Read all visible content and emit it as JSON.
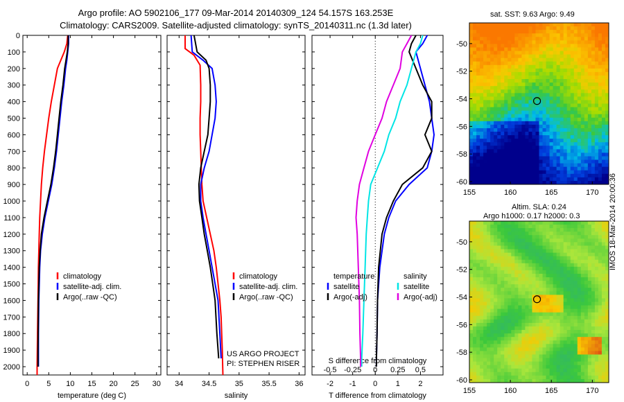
{
  "header": {
    "line1": "Argo profile: AO 5902106_177 09-Mar-2014 20140309_124 54.157S 163.253E",
    "line2": "Climatology: CARS2009. Satellite-adjusted climatology: synTS_20140311.nc (1.3d later)"
  },
  "side": {
    "sst_title": "sat. SST: 9.63 Argo: 9.49",
    "sla_title1": "Altim. SLA: 0.24",
    "sla_title2": "Argo h1000: 0.17 h2000: 0.3",
    "credit": "IMOS 18-Mar-2014 20:00:36"
  },
  "colors": {
    "climatology": "#ff0000",
    "satellite": "#0000ff",
    "argo": "#000000",
    "diff_satellite": "#00e5e5",
    "diff_argo": "#e000e0"
  },
  "chart_data": [
    {
      "type": "line",
      "panel": "temperature",
      "xlabel": "temperature (deg C)",
      "ylabel": "",
      "xlim": [
        -1,
        31
      ],
      "ylim": [
        2050,
        0
      ],
      "xticks": [
        0,
        5,
        10,
        15,
        20,
        25,
        30
      ],
      "yticks": [
        0,
        100,
        200,
        300,
        400,
        500,
        600,
        700,
        800,
        900,
        1000,
        1100,
        1200,
        1300,
        1400,
        1500,
        1600,
        1700,
        1800,
        1900,
        2000
      ],
      "legend": [
        "climatology",
        "satellite-adj. clim.",
        "Argo(..raw -QC)"
      ],
      "series": [
        {
          "name": "climatology",
          "color": "#ff0000",
          "x": [
            9.4,
            9.2,
            8.6,
            7.8,
            7.0,
            6.3,
            5.6,
            5.0,
            4.5,
            4.0,
            3.6,
            3.3,
            3.1,
            2.9,
            2.8,
            2.7,
            2.6,
            2.5,
            2.4,
            2.35,
            2.3,
            2.3
          ],
          "y": [
            0,
            50,
            100,
            150,
            200,
            300,
            400,
            500,
            600,
            700,
            800,
            900,
            1000,
            1100,
            1200,
            1300,
            1400,
            1600,
            1800,
            1900,
            2000,
            2050
          ]
        },
        {
          "name": "satellite-adj. clim.",
          "color": "#0000ff",
          "x": [
            9.6,
            9.6,
            9.4,
            9.2,
            8.9,
            8.5,
            8.0,
            7.6,
            7.2,
            6.8,
            6.3,
            5.7,
            4.9,
            4.1,
            3.5,
            3.1,
            2.9,
            2.7,
            2.6,
            2.6,
            2.6
          ],
          "y": [
            0,
            50,
            100,
            150,
            200,
            300,
            400,
            500,
            600,
            700,
            800,
            900,
            1000,
            1100,
            1200,
            1300,
            1400,
            1600,
            1800,
            1900,
            2000
          ]
        },
        {
          "name": "Argo(..raw -QC)",
          "color": "#000000",
          "x": [
            9.5,
            9.5,
            9.3,
            9.0,
            8.7,
            8.3,
            7.8,
            7.4,
            7.0,
            6.6,
            6.1,
            5.5,
            4.7,
            3.9,
            3.3,
            3.0,
            2.8,
            2.6,
            2.55,
            2.5,
            2.5
          ],
          "y": [
            0,
            50,
            100,
            150,
            200,
            300,
            400,
            500,
            600,
            700,
            800,
            900,
            1000,
            1100,
            1200,
            1300,
            1400,
            1600,
            1800,
            1900,
            2000
          ]
        }
      ]
    },
    {
      "type": "line",
      "panel": "salinity",
      "xlabel": "salinity",
      "ylabel": "",
      "xlim": [
        33.8,
        36.1
      ],
      "ylim": [
        2050,
        0
      ],
      "xticks": [
        34,
        34.5,
        35,
        35.5,
        36
      ],
      "xticklabels": [
        "34",
        "34.5",
        "35",
        "35.5",
        "36"
      ],
      "legend": [
        "climatology",
        "satellite-adj. clim.",
        "Argo(..raw -QC)"
      ],
      "annotation": [
        "US ARGO PROJECT",
        "PI: STEPHEN RISER"
      ],
      "series": [
        {
          "name": "climatology",
          "color": "#ff0000",
          "x": [
            34.1,
            34.1,
            34.25,
            34.35,
            34.36,
            34.36,
            34.35,
            34.35,
            34.36,
            34.37,
            34.38,
            34.4,
            34.46,
            34.52,
            34.58,
            34.62,
            34.65,
            34.68,
            34.7,
            34.72,
            34.73
          ],
          "y": [
            0,
            80,
            120,
            180,
            300,
            400,
            500,
            600,
            700,
            800,
            900,
            1000,
            1100,
            1200,
            1300,
            1400,
            1500,
            1600,
            1700,
            1900,
            2050
          ]
        },
        {
          "name": "satellite-adj. clim.",
          "color": "#0000ff",
          "x": [
            34.2,
            34.22,
            34.4,
            34.55,
            34.6,
            34.62,
            34.6,
            34.55,
            34.5,
            34.42,
            34.36,
            34.36,
            34.4,
            34.45,
            34.5,
            34.55,
            34.6,
            34.65,
            34.68,
            34.7
          ],
          "y": [
            0,
            100,
            150,
            200,
            300,
            400,
            500,
            600,
            700,
            800,
            900,
            1000,
            1100,
            1200,
            1300,
            1400,
            1500,
            1600,
            1800,
            1950
          ]
        },
        {
          "name": "Argo(..raw -QC)",
          "color": "#000000",
          "x": [
            34.25,
            34.3,
            34.45,
            34.5,
            34.52,
            34.52,
            34.5,
            34.48,
            34.42,
            34.36,
            34.33,
            34.34,
            34.38,
            34.42,
            34.47,
            34.52,
            34.56,
            34.6,
            34.63,
            34.66
          ],
          "y": [
            0,
            100,
            150,
            200,
            300,
            400,
            500,
            600,
            700,
            800,
            900,
            1000,
            1100,
            1200,
            1300,
            1400,
            1500,
            1600,
            1800,
            1950
          ]
        }
      ]
    },
    {
      "type": "line",
      "panel": "differences",
      "xlabel": "T difference from climatology",
      "x2label": "S difference from climatology",
      "xlim": [
        -2.8,
        3.0
      ],
      "ylim": [
        2050,
        0
      ],
      "xticks": [
        -2,
        -1,
        0,
        1,
        2
      ],
      "x2ticks": [
        -0.5,
        -0.25,
        0,
        0.25,
        0.5
      ],
      "legend_temperature": [
        "temperature",
        "satellite",
        "Argo(-adj)"
      ],
      "legend_salinity": [
        "salinity",
        "satellite",
        "Argo(-adj)"
      ],
      "series": [
        {
          "name": "temperature satellite",
          "color": "#0000ff",
          "x": [
            2.3,
            2.1,
            1.8,
            2.0,
            2.2,
            2.4,
            2.5,
            2.6,
            2.5,
            2.3,
            1.5,
            0.9,
            0.6,
            0.4,
            0.2,
            0.1,
            0.08,
            0.05,
            0.05
          ],
          "y": [
            0,
            50,
            100,
            200,
            300,
            400,
            500,
            600,
            700,
            800,
            900,
            1000,
            1100,
            1200,
            1400,
            1600,
            1800,
            1950,
            2000
          ]
        },
        {
          "name": "temperature Argo(-adj)",
          "color": "#000000",
          "x": [
            1.8,
            1.6,
            1.5,
            1.8,
            2.1,
            2.5,
            2.5,
            2.2,
            2.5,
            2.1,
            1.2,
            0.8,
            0.5,
            0.3,
            0.15,
            0.1,
            0.08,
            0.05,
            0.05
          ],
          "y": [
            0,
            50,
            100,
            200,
            300,
            400,
            500,
            600,
            700,
            800,
            900,
            1000,
            1100,
            1200,
            1400,
            1600,
            1800,
            1950,
            2000
          ]
        },
        {
          "name": "salinity satellite",
          "color": "#00e5e5",
          "x": [
            2.1,
            2.0,
            1.8,
            1.6,
            1.4,
            1.1,
            0.9,
            0.6,
            0.4,
            0.1,
            -0.2,
            -0.3,
            -0.35,
            -0.4,
            -0.45,
            -0.5,
            -0.55,
            -0.6,
            -0.6
          ],
          "y": [
            0,
            50,
            100,
            200,
            300,
            400,
            500,
            600,
            700,
            800,
            900,
            1000,
            1100,
            1200,
            1400,
            1600,
            1800,
            1950,
            2000
          ]
        },
        {
          "name": "salinity Argo(-adj)",
          "color": "#e000e0",
          "x": [
            1.6,
            1.4,
            1.2,
            1.1,
            0.8,
            0.5,
            0.3,
            0.0,
            -0.3,
            -0.5,
            -0.7,
            -0.8,
            -0.85,
            -0.8,
            -0.75,
            -0.7,
            -0.68,
            -0.65,
            -0.65
          ],
          "y": [
            0,
            50,
            100,
            200,
            300,
            400,
            500,
            600,
            700,
            800,
            900,
            1000,
            1100,
            1200,
            1400,
            1600,
            1800,
            1950,
            2000
          ]
        }
      ]
    },
    {
      "type": "heatmap",
      "panel": "sst_map",
      "title": "sat. SST: 9.63 Argo: 9.49",
      "xlim": [
        155,
        172
      ],
      "ylim": [
        -60.2,
        -48.5
      ],
      "xticks": [
        155,
        160,
        165,
        170
      ],
      "yticks": [
        -50,
        -52,
        -54,
        -56,
        -58,
        -60
      ],
      "float_position": [
        163.25,
        -54.16
      ]
    },
    {
      "type": "heatmap",
      "panel": "sla_map",
      "title": "Altim. SLA: 0.24",
      "subtitle": "Argo h1000: 0.17 h2000: 0.3",
      "xlim": [
        155,
        172
      ],
      "ylim": [
        -60.2,
        -48.5
      ],
      "xticks": [
        155,
        160,
        165,
        170
      ],
      "yticks": [
        -50,
        -52,
        -54,
        -56,
        -58,
        -60
      ],
      "float_position": [
        163.25,
        -54.16
      ]
    }
  ]
}
